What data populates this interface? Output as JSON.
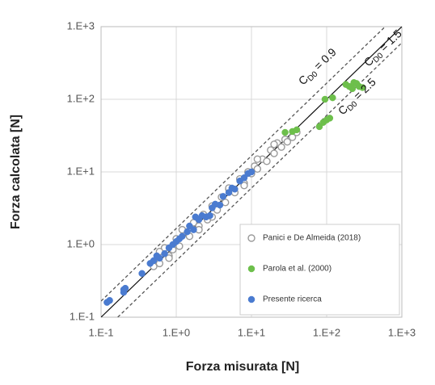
{
  "chart_data": {
    "type": "scatter",
    "x_label": "Forza misurata  [N]",
    "y_label": "Forza calcolata  [N]",
    "xscale": "log",
    "yscale": "log",
    "xlim": [
      0.1,
      1000
    ],
    "ylim": [
      0.1,
      1000
    ],
    "xticks": [
      {
        "value": 0.1,
        "label": "1.E-1"
      },
      {
        "value": 1,
        "label": "1.E+0"
      },
      {
        "value": 10,
        "label": "1.E+1"
      },
      {
        "value": 100,
        "label": "1.E+2"
      },
      {
        "value": 1000,
        "label": "1.E+3"
      }
    ],
    "yticks": [
      {
        "value": 0.1,
        "label": "1.E-1"
      },
      {
        "value": 1,
        "label": "1.E+0"
      },
      {
        "value": 10,
        "label": "1.E+1"
      },
      {
        "value": 100,
        "label": "1.E+2"
      },
      {
        "value": 1000,
        "label": "1.E+3"
      }
    ],
    "grid": true,
    "legend": "bottom-right",
    "series": [
      {
        "name": "Panici e De Almeida (2018)",
        "color": "#9a9a9a",
        "hollow": true,
        "x": [
          0.5,
          0.55,
          0.6,
          0.7,
          0.8,
          0.9,
          1,
          1.1,
          1.3,
          1.5,
          1.7,
          2,
          2.3,
          2.6,
          3,
          3.5,
          4,
          4.5,
          5,
          6,
          7,
          8,
          9,
          10,
          11,
          12,
          14,
          16,
          18,
          20,
          22,
          25,
          28,
          30,
          35,
          40,
          0.6,
          0.8,
          1.2,
          2,
          3,
          5,
          8,
          12,
          20
        ],
        "values": [
          0.5,
          0.6,
          0.55,
          0.9,
          0.7,
          0.85,
          1.2,
          0.95,
          1.5,
          1.3,
          2.0,
          1.8,
          2.6,
          2.2,
          3.4,
          3.0,
          4.5,
          3.8,
          5.8,
          5.2,
          8,
          7,
          10,
          9.5,
          12,
          11,
          15,
          14,
          20,
          18,
          25,
          22,
          28,
          26,
          30,
          35,
          0.8,
          0.65,
          1.6,
          1.6,
          2.4,
          6,
          6.5,
          15,
          24
        ]
      },
      {
        "name": "Parola et al. (2000)",
        "color": "#6dbf4b",
        "hollow": false,
        "x": [
          28,
          35,
          40,
          80,
          90,
          100,
          110,
          95,
          120,
          180,
          200,
          230,
          250,
          270,
          300,
          220
        ],
        "values": [
          35,
          36,
          38,
          42,
          48,
          52,
          55,
          100,
          105,
          160,
          150,
          170,
          165,
          150,
          145,
          140
        ]
      },
      {
        "name": "Presente ricerca",
        "color": "#4a7bd0",
        "hollow": false,
        "x": [
          0.12,
          0.13,
          0.2,
          0.21,
          0.2,
          0.45,
          0.5,
          0.55,
          0.6,
          0.7,
          0.8,
          0.9,
          1,
          1.1,
          1.2,
          1.4,
          1.5,
          1.7,
          2,
          2.2,
          2.5,
          3,
          3.3,
          3.8,
          4.2,
          5,
          5.5,
          6,
          7,
          8,
          9,
          10,
          1.8,
          2.8,
          0.35
        ],
        "values": [
          0.16,
          0.17,
          0.22,
          0.25,
          0.24,
          0.55,
          0.6,
          0.7,
          0.65,
          0.75,
          0.9,
          1.0,
          1.1,
          1.2,
          1.3,
          1.5,
          1.8,
          1.6,
          2.2,
          2.5,
          2.4,
          3.2,
          3.6,
          3.5,
          4.6,
          5.2,
          6,
          5.8,
          7.5,
          8.3,
          9.5,
          10,
          2.4,
          2.5,
          0.4
        ]
      }
    ],
    "reference_lines": [
      {
        "symbol": "C",
        "subscript": "D0",
        "text": " = 0.9",
        "dashed": true,
        "x": [
          0.1,
          600
        ],
        "values": [
          0.1667,
          1000
        ]
      },
      {
        "symbol": "C",
        "subscript": "D0",
        "text": " = 1.5",
        "dashed": false,
        "x": [
          0.1,
          1000
        ],
        "values": [
          0.1,
          1000
        ]
      },
      {
        "symbol": "C",
        "subscript": "D0",
        "text": " = 2.5",
        "dashed": true,
        "x": [
          0.1667,
          1000
        ],
        "values": [
          0.1,
          600
        ]
      }
    ]
  }
}
